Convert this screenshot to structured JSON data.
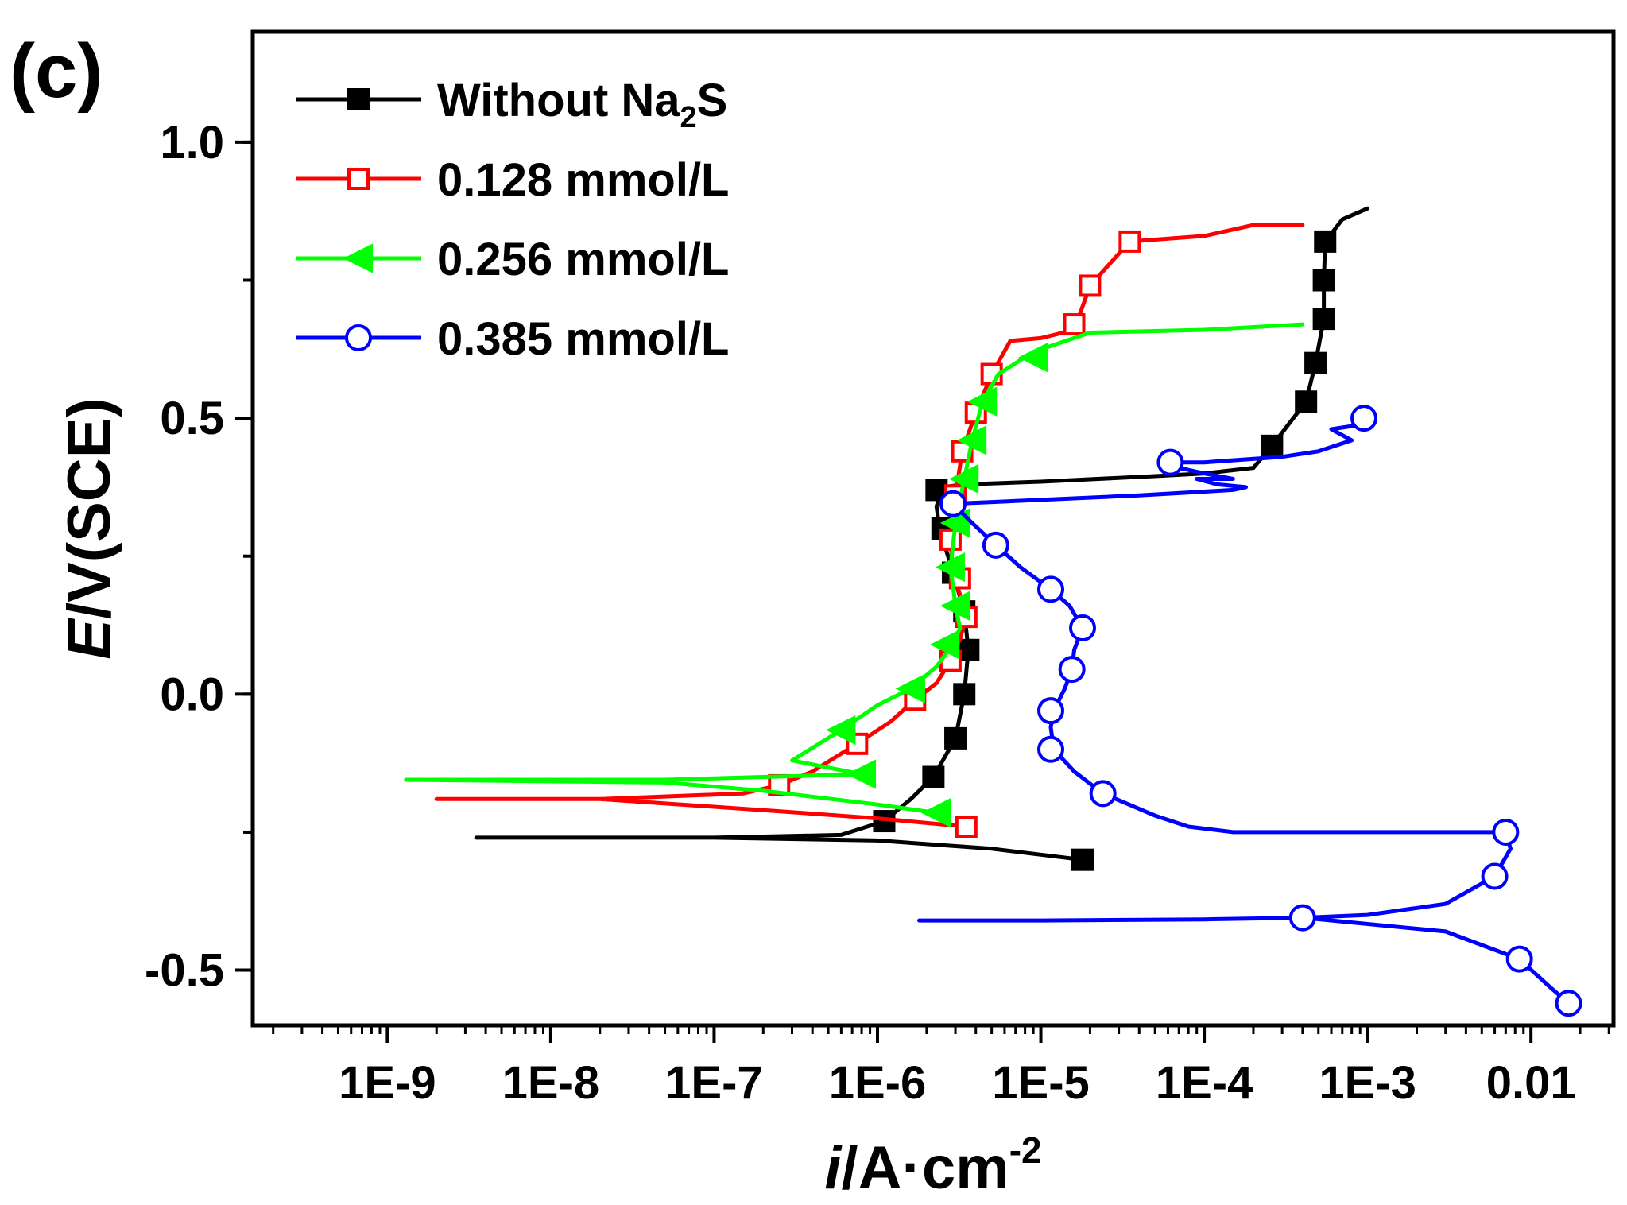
{
  "chart_data": {
    "type": "line",
    "panel_label": "(c)",
    "xscale": "log",
    "xlim": [
      1.5e-10,
      0.032
    ],
    "ylim": [
      -0.6,
      1.2
    ],
    "xlabel": {
      "italic": "i",
      "main": "/A·cm",
      "sup": "-2"
    },
    "ylabel": {
      "italic": "E",
      "main": "/V(SCE)"
    },
    "x_ticks": [
      {
        "value": 1e-09,
        "label": "1E-9"
      },
      {
        "value": 1e-08,
        "label": "1E-8"
      },
      {
        "value": 1e-07,
        "label": "1E-7"
      },
      {
        "value": 1e-06,
        "label": "1E-6"
      },
      {
        "value": 1e-05,
        "label": "1E-5"
      },
      {
        "value": 0.0001,
        "label": "1E-4"
      },
      {
        "value": 0.001,
        "label": "1E-3"
      },
      {
        "value": 0.01,
        "label": "0.01"
      }
    ],
    "y_ticks": [
      {
        "value": -0.5,
        "label": "-0.5"
      },
      {
        "value": 0.0,
        "label": "0.0"
      },
      {
        "value": 0.5,
        "label": "0.5"
      },
      {
        "value": 1.0,
        "label": "1.0"
      }
    ],
    "legend_position": "top-left",
    "series": [
      {
        "name": "Without Na2S",
        "legend": {
          "main": "Without Na",
          "sub": "2",
          "tail": "S"
        },
        "color": "#000000",
        "marker": "square-filled",
        "line": [
          [
            1.8e-05,
            -0.3
          ],
          [
            5e-06,
            -0.28
          ],
          [
            1e-06,
            -0.265
          ],
          [
            1e-07,
            -0.26
          ],
          [
            1e-08,
            -0.26
          ],
          [
            3.5e-09,
            -0.26
          ],
          [
            1e-08,
            -0.26
          ],
          [
            1e-07,
            -0.26
          ],
          [
            6e-07,
            -0.255
          ],
          [
            1.1e-06,
            -0.23
          ],
          [
            1.6e-06,
            -0.19
          ],
          [
            2.2e-06,
            -0.15
          ],
          [
            3e-06,
            -0.08
          ],
          [
            3.4e-06,
            0.0
          ],
          [
            3.6e-06,
            0.08
          ],
          [
            3.4e-06,
            0.15
          ],
          [
            2.9e-06,
            0.22
          ],
          [
            2.4e-06,
            0.3
          ],
          [
            2.3e-06,
            0.34
          ],
          [
            2.5e-06,
            0.375
          ],
          [
            3.5e-06,
            0.38
          ],
          [
            1e-05,
            0.385
          ],
          [
            5e-05,
            0.395
          ],
          [
            0.0001,
            0.4
          ],
          [
            0.0002,
            0.41
          ],
          [
            0.00026,
            0.45
          ],
          [
            0.00042,
            0.53
          ],
          [
            0.00048,
            0.6
          ],
          [
            0.00054,
            0.68
          ],
          [
            0.00054,
            0.75
          ],
          [
            0.00055,
            0.82
          ],
          [
            0.0007,
            0.86
          ],
          [
            0.001,
            0.88
          ]
        ],
        "markers": [
          [
            1.8e-05,
            -0.3
          ],
          [
            1.1e-06,
            -0.23
          ],
          [
            2.2e-06,
            -0.15
          ],
          [
            3e-06,
            -0.08
          ],
          [
            3.4e-06,
            0.0
          ],
          [
            3.6e-06,
            0.08
          ],
          [
            3.4e-06,
            0.15
          ],
          [
            2.9e-06,
            0.22
          ],
          [
            2.5e-06,
            0.3
          ],
          [
            2.3e-06,
            0.37
          ],
          [
            0.00026,
            0.45
          ],
          [
            0.00042,
            0.53
          ],
          [
            0.00048,
            0.6
          ],
          [
            0.00054,
            0.68
          ],
          [
            0.00054,
            0.75
          ],
          [
            0.00055,
            0.82
          ]
        ]
      },
      {
        "name": "0.128 mmol/L",
        "legend": {
          "main": "0.128 mmol/L"
        },
        "color": "#ff0000",
        "marker": "square-open",
        "line": [
          [
            3.5e-06,
            -0.24
          ],
          [
            1e-06,
            -0.225
          ],
          [
            2e-07,
            -0.21
          ],
          [
            2e-08,
            -0.19
          ],
          [
            2e-09,
            -0.19
          ],
          [
            2e-08,
            -0.19
          ],
          [
            1.5e-07,
            -0.18
          ],
          [
            2.5e-07,
            -0.165
          ],
          [
            4e-07,
            -0.14
          ],
          [
            7.5e-07,
            -0.09
          ],
          [
            1.2e-06,
            -0.05
          ],
          [
            1.7e-06,
            -0.01
          ],
          [
            2.3e-06,
            0.02
          ],
          [
            2.8e-06,
            0.06
          ],
          [
            3.2e-06,
            0.1
          ],
          [
            3.5e-06,
            0.14
          ],
          [
            3.2e-06,
            0.18
          ],
          [
            2.9e-06,
            0.22
          ],
          [
            2.8e-06,
            0.28
          ],
          [
            3e-06,
            0.36
          ],
          [
            3.3e-06,
            0.44
          ],
          [
            4e-06,
            0.51
          ],
          [
            5e-06,
            0.58
          ],
          [
            6.5e-06,
            0.64
          ],
          [
            1e-05,
            0.645
          ],
          [
            1.6e-05,
            0.66
          ],
          [
            2e-05,
            0.74
          ],
          [
            3.5e-05,
            0.82
          ],
          [
            0.0001,
            0.83
          ],
          [
            0.0002,
            0.85
          ],
          [
            0.0004,
            0.85
          ]
        ],
        "markers": [
          [
            3.5e-06,
            -0.24
          ],
          [
            2.5e-07,
            -0.165
          ],
          [
            7.5e-07,
            -0.09
          ],
          [
            1.7e-06,
            -0.01
          ],
          [
            2.8e-06,
            0.06
          ],
          [
            3.5e-06,
            0.14
          ],
          [
            3.2e-06,
            0.21
          ],
          [
            2.8e-06,
            0.28
          ],
          [
            3e-06,
            0.36
          ],
          [
            3.3e-06,
            0.44
          ],
          [
            4e-06,
            0.51
          ],
          [
            5e-06,
            0.58
          ],
          [
            1.6e-05,
            0.67
          ],
          [
            2e-05,
            0.74
          ],
          [
            3.5e-05,
            0.82
          ]
        ]
      },
      {
        "name": "0.256 mmol/L",
        "legend": {
          "main": "0.256 mmol/L"
        },
        "color": "#00ff00",
        "marker": "triangle-left-filled",
        "line": [
          [
            2.3e-06,
            -0.215
          ],
          [
            1e-06,
            -0.2
          ],
          [
            2e-07,
            -0.175
          ],
          [
            5e-08,
            -0.16
          ],
          [
            1.3e-09,
            -0.155
          ],
          [
            5e-08,
            -0.155
          ],
          [
            8e-07,
            -0.145
          ],
          [
            3e-07,
            -0.12
          ],
          [
            6e-07,
            -0.065
          ],
          [
            1e-06,
            -0.02
          ],
          [
            1.6e-06,
            0.01
          ],
          [
            2.3e-06,
            0.05
          ],
          [
            2.9e-06,
            0.09
          ],
          [
            3.2e-06,
            0.12
          ],
          [
            3e-06,
            0.16
          ],
          [
            2.8e-06,
            0.23
          ],
          [
            3e-06,
            0.31
          ],
          [
            3.4e-06,
            0.39
          ],
          [
            3.8e-06,
            0.46
          ],
          [
            4.4e-06,
            0.53
          ],
          [
            5.5e-06,
            0.58
          ],
          [
            9e-06,
            0.62
          ],
          [
            2e-05,
            0.655
          ],
          [
            0.0001,
            0.66
          ],
          [
            0.0004,
            0.67
          ]
        ],
        "markers": [
          [
            2.3e-06,
            -0.215
          ],
          [
            8e-07,
            -0.145
          ],
          [
            6e-07,
            -0.065
          ],
          [
            1.6e-06,
            0.01
          ],
          [
            2.6e-06,
            0.09
          ],
          [
            3e-06,
            0.16
          ],
          [
            2.8e-06,
            0.23
          ],
          [
            3e-06,
            0.31
          ],
          [
            3.4e-06,
            0.39
          ],
          [
            3.8e-06,
            0.46
          ],
          [
            4.4e-06,
            0.53
          ],
          [
            9e-06,
            0.61
          ]
        ]
      },
      {
        "name": "0.385 mmol/L",
        "legend": {
          "main": "0.385 mmol/L"
        },
        "color": "#0000ff",
        "marker": "circle-open",
        "line": [
          [
            1.8e-06,
            -0.41
          ],
          [
            1e-05,
            -0.41
          ],
          [
            0.0001,
            -0.408
          ],
          [
            0.0004,
            -0.405
          ],
          [
            0.001,
            -0.4
          ],
          [
            0.003,
            -0.38
          ],
          [
            0.006,
            -0.33
          ],
          [
            0.0075,
            -0.28
          ],
          [
            0.007,
            -0.25
          ],
          [
            0.001,
            -0.25
          ],
          [
            0.00015,
            -0.25
          ],
          [
            8e-05,
            -0.24
          ],
          [
            5e-05,
            -0.22
          ],
          [
            2.4e-05,
            -0.18
          ],
          [
            1.6e-05,
            -0.14
          ],
          [
            1.2e-05,
            -0.1
          ],
          [
            1.15e-05,
            -0.06
          ],
          [
            1.2e-05,
            -0.03
          ],
          [
            1.4e-05,
            0.01
          ],
          [
            1.55e-05,
            0.045
          ],
          [
            1.6e-05,
            0.08
          ],
          [
            1.8e-05,
            0.12
          ],
          [
            1.5e-05,
            0.16
          ],
          [
            1.15e-05,
            0.19
          ],
          [
            7.5e-06,
            0.23
          ],
          [
            5.3e-06,
            0.27
          ],
          [
            3.8e-06,
            0.31
          ],
          [
            2.9e-06,
            0.345
          ],
          [
            4e-05,
            0.36
          ],
          [
            0.00015,
            0.37
          ],
          [
            0.00018,
            0.375
          ],
          [
            0.00012,
            0.38
          ],
          [
            9e-05,
            0.39
          ],
          [
            0.00015,
            0.39
          ],
          [
            0.0001,
            0.4
          ],
          [
            7e-05,
            0.41
          ],
          [
            6.2e-05,
            0.42
          ],
          [
            0.0001,
            0.42
          ],
          [
            0.0003,
            0.43
          ],
          [
            0.0005,
            0.44
          ],
          [
            0.0008,
            0.46
          ],
          [
            0.0006,
            0.48
          ],
          [
            0.001,
            0.49
          ],
          [
            0.00095,
            0.5
          ]
        ],
        "markers": [
          [
            0.017,
            -0.56
          ],
          [
            0.0085,
            -0.48
          ],
          [
            0.0004,
            -0.405
          ],
          [
            0.006,
            -0.33
          ],
          [
            0.007,
            -0.25
          ],
          [
            2.4e-05,
            -0.18
          ],
          [
            1.15e-05,
            -0.1
          ],
          [
            1.15e-05,
            -0.03
          ],
          [
            1.55e-05,
            0.045
          ],
          [
            1.8e-05,
            0.12
          ],
          [
            1.15e-05,
            0.19
          ],
          [
            5.3e-06,
            0.27
          ],
          [
            2.9e-06,
            0.345
          ],
          [
            6.2e-05,
            0.42
          ],
          [
            0.00095,
            0.5
          ]
        ],
        "tail": [
          [
            0.0004,
            -0.405
          ],
          [
            0.003,
            -0.43
          ],
          [
            0.0085,
            -0.48
          ],
          [
            0.013,
            -0.53
          ],
          [
            0.017,
            -0.56
          ]
        ]
      }
    ]
  }
}
